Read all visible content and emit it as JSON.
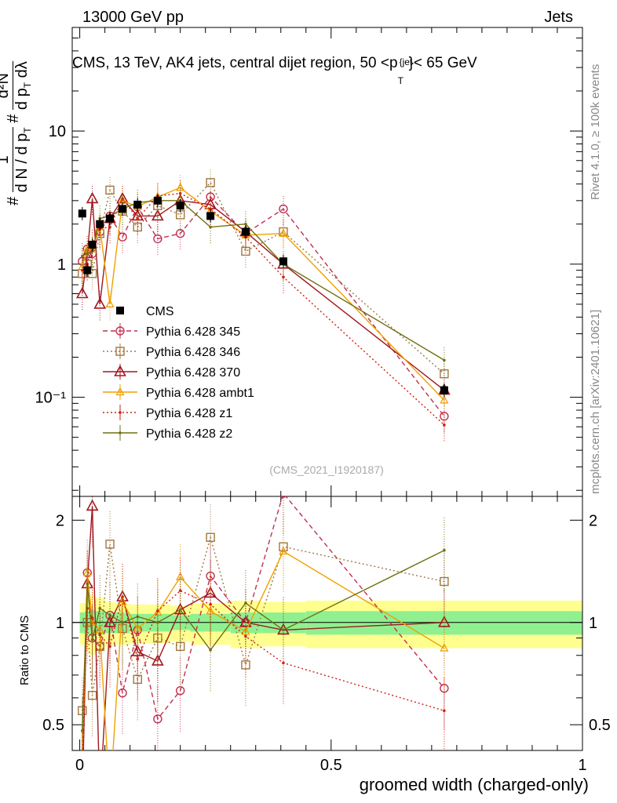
{
  "header": {
    "left": "13000 GeV pp",
    "right": "Jets"
  },
  "side_labels": {
    "rivet": "Rivet 4.1.0, ≥ 100k events",
    "mcplots": "mcplots.cern.ch [arXiv:2401.10621]"
  },
  "analysis_tag": "(CMS_2021_I1920187)",
  "colors": {
    "345": "#c0304f",
    "346": "#a07840",
    "370": "#a01820",
    "ambt1": "#f0a000",
    "z1": "#d02010",
    "z2": "#707010",
    "green_band": "#90f090",
    "yellow_band": "#ffff90"
  },
  "chart_data": [
    {
      "type": "line",
      "panel": "main",
      "title": "CMS, 13 TeV, AK4 jets, central dijet region, 50 <p_T^{jet}< 65 GeV",
      "title_parts": {
        "a": "CMS, 13 TeV, AK4 jets, central dijet region, 50 <p",
        "sub": "T",
        "sup": "{jet",
        "b": "}< 65 GeV"
      },
      "xlabel": "groomed width (charged-only)",
      "ylabel": "1/N dN/dp_T ... d²N/(dp_T dλ)",
      "ylabel_tex": {
        "hash": "#",
        "one": "1",
        "dn": "d N / d p",
        "t": "T",
        "d2n": "d²N",
        "dpdl": "d p",
        "lam": "dλ"
      },
      "xlim": [
        -0.015,
        1.0
      ],
      "ylim": [
        0.018,
        60
      ],
      "yscale": "log",
      "x_ticks": [
        0,
        0.5,
        1
      ],
      "x_tick_labels": [
        "0",
        "0.5",
        "1"
      ],
      "y_ticks": [
        0.1,
        1,
        10
      ],
      "y_tick_labels": [
        "10⁻¹",
        "1",
        "10"
      ],
      "x": [
        0.005,
        0.015,
        0.025,
        0.04,
        0.06,
        0.085,
        0.115,
        0.155,
        0.2,
        0.26,
        0.33,
        0.405,
        0.725
      ],
      "series": [
        {
          "name": "CMS",
          "style": "data",
          "values": [
            2.4,
            0.9,
            1.4,
            2.0,
            2.2,
            2.6,
            2.8,
            3.0,
            2.75,
            2.3,
            1.75,
            1.05,
            0.113
          ]
        },
        {
          "name": "Pythia 6.428 345",
          "key": "345",
          "marker": "circle-open",
          "dash": "dashed",
          "values": [
            1.05,
            1.3,
            1.2,
            1.75,
            2.3,
            1.6,
            2.7,
            1.55,
            1.7,
            3.2,
            1.7,
            2.6,
            0.072
          ]
        },
        {
          "name": "Pythia 6.428 346",
          "key": "346",
          "marker": "square-open",
          "dash": "dotted",
          "values": [
            0.85,
            1.0,
            0.85,
            1.7,
            3.6,
            2.5,
            1.9,
            2.75,
            2.35,
            4.1,
            1.25,
            1.75,
            0.15
          ]
        },
        {
          "name": "Pythia 6.428 370",
          "key": "370",
          "marker": "triangle-open",
          "dash": "solid",
          "values": [
            0.6,
            1.2,
            3.1,
            0.5,
            2.2,
            3.1,
            2.3,
            2.3,
            3.0,
            2.8,
            1.75,
            1.0,
            0.113
          ]
        },
        {
          "name": "Pythia 6.428 ambt1",
          "key": "ambt1",
          "marker": "triangle-small",
          "dash": "solid",
          "values": [
            0.95,
            1.3,
            1.3,
            1.9,
            0.5,
            3.0,
            2.7,
            3.2,
            3.75,
            2.5,
            1.65,
            1.7,
            0.095
          ]
        },
        {
          "name": "Pythia 6.428 z1",
          "key": "z1",
          "marker": "dot",
          "dash": "dotted",
          "values": [
            0.9,
            1.0,
            1.45,
            1.85,
            1.9,
            3.1,
            2.2,
            3.25,
            3.4,
            2.6,
            1.6,
            0.8,
            0.062
          ]
        },
        {
          "name": "Pythia 6.428 z2",
          "key": "z2",
          "marker": "dot",
          "dash": "solid",
          "values": [
            1.15,
            1.2,
            1.25,
            2.2,
            2.3,
            2.6,
            2.9,
            3.0,
            3.0,
            1.9,
            2.0,
            1.0,
            0.19
          ]
        }
      ]
    },
    {
      "type": "line",
      "panel": "ratio",
      "ylabel": "Ratio to CMS",
      "xlim": [
        -0.015,
        1.0
      ],
      "ylim": [
        0.42,
        2.35
      ],
      "yscale": "log",
      "y_ticks": [
        0.5,
        1,
        2
      ],
      "y_tick_labels": [
        "0.5",
        "1",
        "2"
      ],
      "bands": {
        "x_edges": [
          0,
          0.01,
          0.02,
          0.03,
          0.05,
          0.07,
          0.1,
          0.13,
          0.18,
          0.22,
          0.3,
          0.36,
          0.45,
          1.0
        ],
        "green_half": [
          0.07,
          0.08,
          0.09,
          0.08,
          0.07,
          0.07,
          0.06,
          0.06,
          0.05,
          0.06,
          0.07,
          0.07,
          0.08
        ],
        "yellow_half": [
          0.14,
          0.18,
          0.2,
          0.18,
          0.15,
          0.14,
          0.13,
          0.13,
          0.12,
          0.14,
          0.16,
          0.15,
          0.16
        ]
      },
      "x": [
        0.005,
        0.015,
        0.025,
        0.04,
        0.06,
        0.085,
        0.115,
        0.155,
        0.2,
        0.26,
        0.33,
        0.405,
        0.725
      ],
      "series": [
        {
          "key": "345",
          "values": [
            0.4,
            1.4,
            0.9,
            0.85,
            1.05,
            0.62,
            0.95,
            0.52,
            0.63,
            1.37,
            1.0,
            2.4,
            0.64
          ]
        },
        {
          "key": "346",
          "values": [
            0.55,
            1.0,
            0.61,
            0.85,
            1.7,
            0.96,
            0.68,
            0.9,
            0.85,
            1.78,
            0.75,
            1.67,
            1.32
          ]
        },
        {
          "key": "370",
          "values": [
            0.25,
            1.3,
            2.2,
            0.3,
            1.0,
            1.19,
            0.82,
            0.77,
            1.09,
            1.22,
            1.0,
            0.95,
            1.0
          ]
        },
        {
          "key": "ambt1",
          "values": [
            0.4,
            1.4,
            1.0,
            0.95,
            0.25,
            1.15,
            0.96,
            1.07,
            1.36,
            1.08,
            0.94,
            1.62,
            0.84
          ]
        },
        {
          "key": "z1",
          "values": [
            0.38,
            1.1,
            1.03,
            0.92,
            0.85,
            1.19,
            0.78,
            1.08,
            1.24,
            1.13,
            0.91,
            0.76,
            0.55
          ]
        },
        {
          "key": "z2",
          "values": [
            0.48,
            1.3,
            0.89,
            1.1,
            1.05,
            1.0,
            1.04,
            1.0,
            1.09,
            0.83,
            1.14,
            0.95,
            1.63
          ]
        }
      ]
    }
  ]
}
